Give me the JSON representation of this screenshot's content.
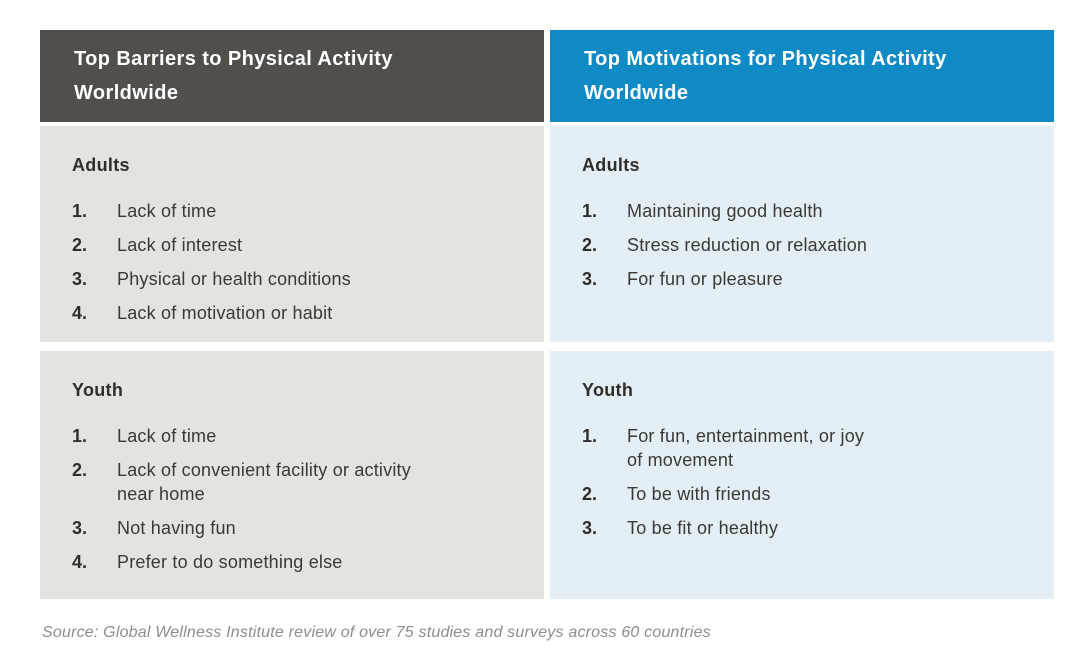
{
  "colors": {
    "barriers_header_bg": "#524f4b",
    "motivations_header_bg": "#0f8ac5",
    "barriers_body_bg": "#e5e3de",
    "motivations_body_bg": "#e3eef5",
    "header_text": "#ffffff",
    "body_text": "#3a3936",
    "footer_text": "#8e8d8b"
  },
  "table": {
    "barriers": {
      "header": "Top Barriers to Physical Activity\nWorldwide",
      "adults": {
        "title": "Adults",
        "items": [
          {
            "num": "1.",
            "text": "Lack of time"
          },
          {
            "num": "2.",
            "text": "Lack of interest"
          },
          {
            "num": "3.",
            "text": "Physical or health conditions"
          },
          {
            "num": "4.",
            "text": "Lack of motivation or habit"
          }
        ]
      },
      "youth": {
        "title": "Youth",
        "items": [
          {
            "num": "1.",
            "text": "Lack of time"
          },
          {
            "num": "2.",
            "text": "Lack of convenient facility or activity\nnear home"
          },
          {
            "num": "3.",
            "text": "Not having fun"
          },
          {
            "num": "4.",
            "text": "Prefer to do something else"
          }
        ]
      }
    },
    "motivations": {
      "header": "Top Motivations for Physical Activity\nWorldwide",
      "adults": {
        "title": "Adults",
        "items": [
          {
            "num": "1.",
            "text": "Maintaining good health"
          },
          {
            "num": "2.",
            "text": "Stress reduction or relaxation"
          },
          {
            "num": "3.",
            "text": "For fun or pleasure"
          }
        ]
      },
      "youth": {
        "title": "Youth",
        "items": [
          {
            "num": "1.",
            "text": "For fun, entertainment, or joy\nof movement"
          },
          {
            "num": "2.",
            "text": "To be with friends"
          },
          {
            "num": "3.",
            "text": "To be fit or healthy"
          }
        ]
      }
    }
  },
  "footer": {
    "source": "Source: Global Wellness Institute review of over 75 studies and surveys across 60 countries"
  }
}
